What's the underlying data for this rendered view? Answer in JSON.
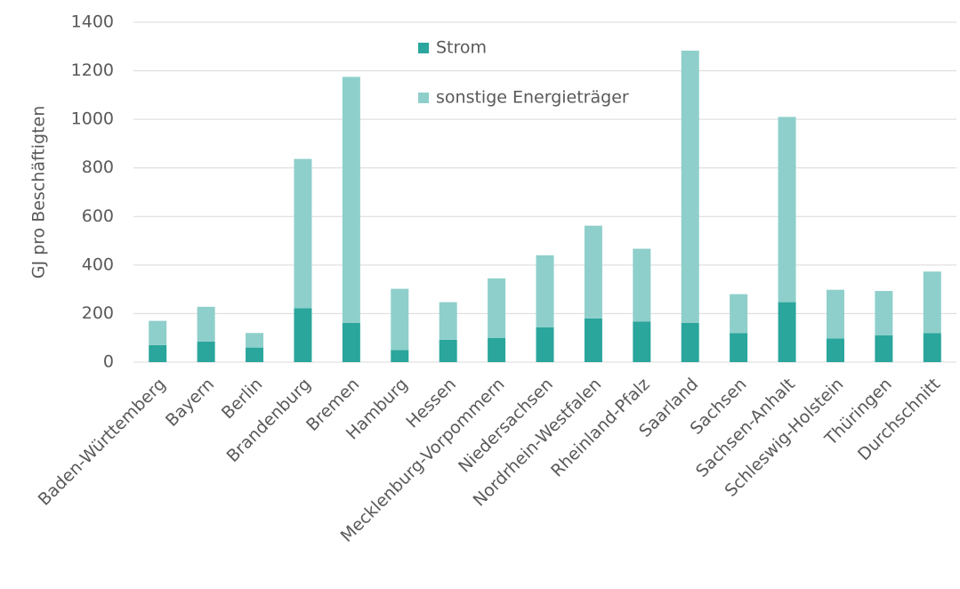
{
  "chart_data": {
    "type": "stacked_bar",
    "y_label": "GJ pro Beschäftigten",
    "categories": [
      "Baden-Württemberg",
      "Bayern",
      "Berlin",
      "Brandenburg",
      "Bremen",
      "Hamburg",
      "Hessen",
      "Mecklenburg-Vorpommern",
      "Niedersachsen",
      "Nordrhein-Westfalen",
      "Rheinland-Pfalz",
      "Saarland",
      "Sachsen",
      "Sachsen-Anhalt",
      "Schleswig-Holstein",
      "Thüringen",
      "Durchschnitt"
    ],
    "series": [
      {
        "name": "Strom",
        "color": "#2aa69c",
        "values": [
          70,
          85,
          60,
          222,
          162,
          50,
          92,
          100,
          143,
          180,
          167,
          162,
          120,
          247,
          97,
          110,
          120
        ]
      },
      {
        "name": "sonstige Energieträger",
        "color": "#8ecfcb",
        "values": [
          100,
          143,
          60,
          615,
          1013,
          252,
          155,
          245,
          297,
          382,
          300,
          1121,
          160,
          763,
          201,
          183,
          253
        ]
      }
    ],
    "ylim": [
      0,
      1400
    ],
    "yticks": [
      0,
      200,
      400,
      600,
      800,
      1000,
      1200,
      1400
    ],
    "grid": true
  }
}
